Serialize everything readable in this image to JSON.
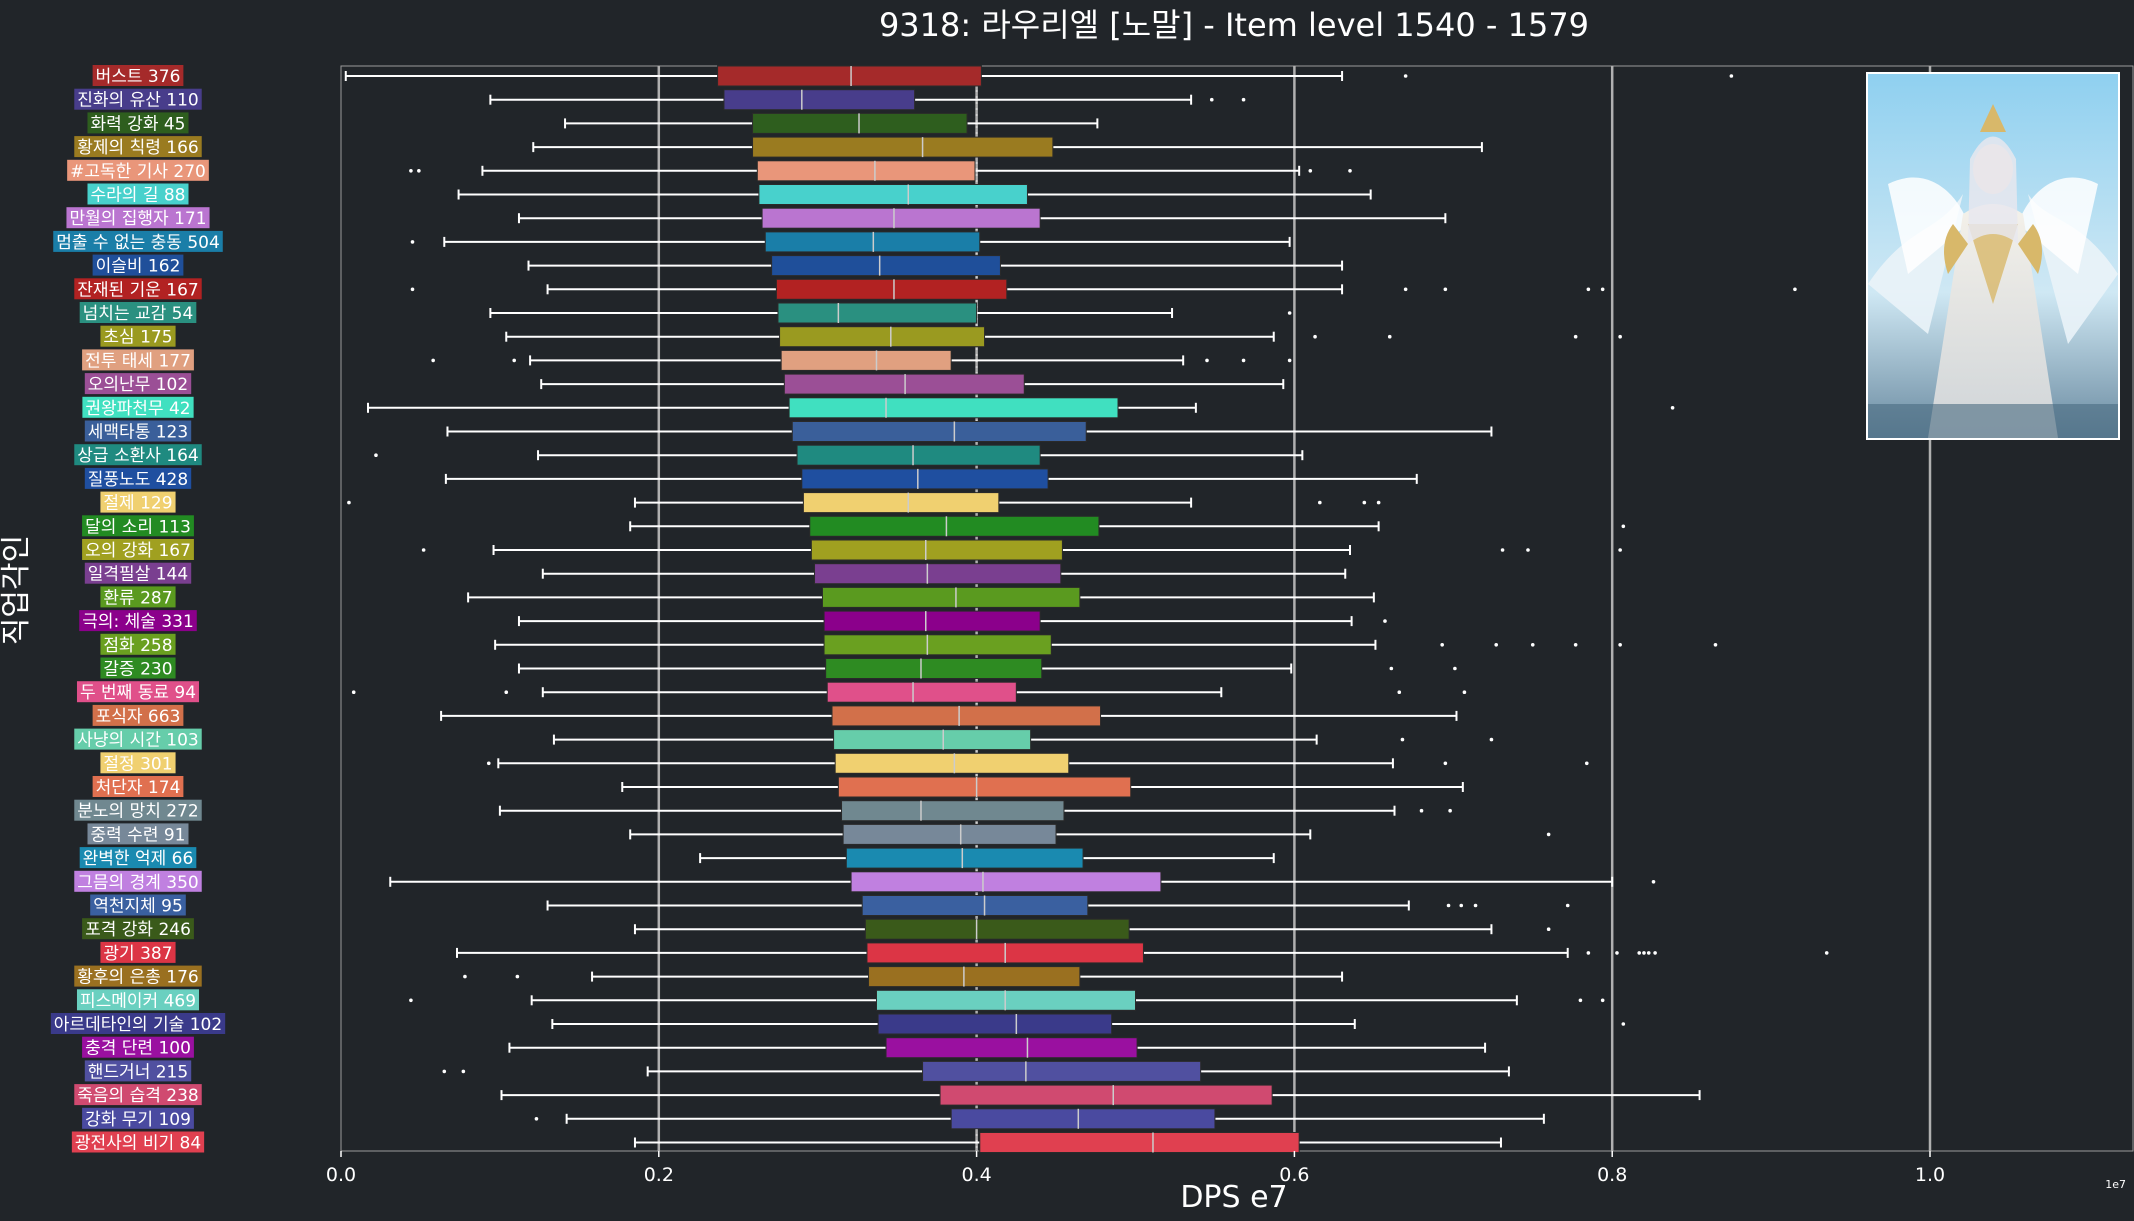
{
  "chart_data": {
    "type": "box",
    "orientation": "horizontal",
    "title": "9318: 라우리엘 [노말] - Item level 1540 - 1579",
    "xlabel": "DPS e7",
    "ylabel": "직업각인",
    "x_exponent_label": "1e7",
    "xlim": [
      0,
      1.13
    ],
    "xticks": [
      "0.0",
      "0.2",
      "0.4",
      "0.6",
      "0.8",
      "1.0"
    ],
    "x_tick_values": [
      0,
      0.2,
      0.4,
      0.6,
      0.8,
      1.0
    ],
    "major_gridlines_x": [
      0.2,
      0.4,
      0.6,
      0.8,
      1.0
    ],
    "dotted_reference_x": 0.4,
    "background_color": "#212529",
    "grid_color": "#9a9a9a",
    "series": [
      {
        "name": "버스트 376",
        "color": "#a52a2a",
        "whisker_low": 0.003,
        "q1": 0.237,
        "median": 0.321,
        "q3": 0.403,
        "whisker_high": 0.63,
        "outliers": [
          0.67,
          0.875
        ]
      },
      {
        "name": "진화의 유산 110",
        "color": "#483d8b",
        "whisker_low": 0.094,
        "q1": 0.241,
        "median": 0.29,
        "q3": 0.361,
        "whisker_high": 0.535,
        "outliers": [
          0.548,
          0.568
        ]
      },
      {
        "name": "화력 강화 45",
        "color": "#2e5e1e",
        "whisker_low": 0.141,
        "q1": 0.259,
        "median": 0.326,
        "q3": 0.394,
        "whisker_high": 0.476,
        "outliers": []
      },
      {
        "name": "황제의 칙령 166",
        "color": "#9a7b20",
        "whisker_low": 0.121,
        "q1": 0.259,
        "median": 0.366,
        "q3": 0.448,
        "whisker_high": 0.718,
        "outliers": []
      },
      {
        "name": "#고독한 기사 270",
        "color": "#e9967a",
        "whisker_low": 0.089,
        "q1": 0.262,
        "median": 0.336,
        "q3": 0.399,
        "whisker_high": 0.603,
        "outliers": [
          0.044,
          0.049,
          0.61,
          0.635
        ]
      },
      {
        "name": "수라의 길 88",
        "color": "#48d1cc",
        "whisker_low": 0.074,
        "q1": 0.263,
        "median": 0.357,
        "q3": 0.432,
        "whisker_high": 0.648,
        "outliers": []
      },
      {
        "name": "만월의 집행자 171",
        "color": "#ba75d0",
        "whisker_low": 0.112,
        "q1": 0.265,
        "median": 0.348,
        "q3": 0.44,
        "whisker_high": 0.695,
        "outliers": []
      },
      {
        "name": "멈출 수 없는 충동 504",
        "color": "#1a7ea8",
        "whisker_low": 0.065,
        "q1": 0.267,
        "median": 0.335,
        "q3": 0.402,
        "whisker_high": 0.597,
        "outliers": [
          0.045
        ]
      },
      {
        "name": "이슬비 162",
        "color": "#1f4f9a",
        "whisker_low": 0.118,
        "q1": 0.271,
        "median": 0.339,
        "q3": 0.415,
        "whisker_high": 0.63,
        "outliers": []
      },
      {
        "name": "잔재된 기운 167",
        "color": "#b22222",
        "whisker_low": 0.13,
        "q1": 0.274,
        "median": 0.348,
        "q3": 0.419,
        "whisker_high": 0.63,
        "outliers": [
          0.045,
          0.67,
          0.695,
          0.785,
          0.794,
          0.915
        ]
      },
      {
        "name": "넘치는 교감 54",
        "color": "#2a9080",
        "whisker_low": 0.094,
        "q1": 0.275,
        "median": 0.313,
        "q3": 0.4,
        "whisker_high": 0.523,
        "outliers": [
          0.597
        ]
      },
      {
        "name": "초심 175",
        "color": "#9a9a20",
        "whisker_low": 0.104,
        "q1": 0.276,
        "median": 0.346,
        "q3": 0.405,
        "whisker_high": 0.587,
        "outliers": [
          0.613,
          0.66,
          0.777,
          0.805
        ]
      },
      {
        "name": "전투 태세 177",
        "color": "#e0a080",
        "whisker_low": 0.119,
        "q1": 0.277,
        "median": 0.337,
        "q3": 0.384,
        "whisker_high": 0.53,
        "outliers": [
          0.058,
          0.109,
          0.545,
          0.568,
          0.597
        ]
      },
      {
        "name": "오의난무 102",
        "color": "#9b4f96",
        "whisker_low": 0.126,
        "q1": 0.279,
        "median": 0.355,
        "q3": 0.43,
        "whisker_high": 0.593,
        "outliers": []
      },
      {
        "name": "권왕파천무 42",
        "color": "#40e0c0",
        "whisker_low": 0.017,
        "q1": 0.282,
        "median": 0.343,
        "q3": 0.489,
        "whisker_high": 0.538,
        "outliers": [
          0.838
        ]
      },
      {
        "name": "세맥타통 123",
        "color": "#3a5f9a",
        "whisker_low": 0.067,
        "q1": 0.284,
        "median": 0.386,
        "q3": 0.469,
        "whisker_high": 0.724,
        "outliers": []
      },
      {
        "name": "상급 소환사 164",
        "color": "#1f8a80",
        "whisker_low": 0.124,
        "q1": 0.287,
        "median": 0.36,
        "q3": 0.44,
        "whisker_high": 0.605,
        "outliers": [
          0.022
        ]
      },
      {
        "name": "질풍노도 428",
        "color": "#1f4fa0",
        "whisker_low": 0.066,
        "q1": 0.29,
        "median": 0.363,
        "q3": 0.445,
        "whisker_high": 0.677,
        "outliers": []
      },
      {
        "name": "절제 129",
        "color": "#f0d070",
        "whisker_low": 0.185,
        "q1": 0.291,
        "median": 0.357,
        "q3": 0.414,
        "whisker_high": 0.535,
        "outliers": [
          0.005,
          0.616,
          0.644,
          0.653
        ]
      },
      {
        "name": "달의 소리 113",
        "color": "#228b22",
        "whisker_low": 0.182,
        "q1": 0.295,
        "median": 0.381,
        "q3": 0.477,
        "whisker_high": 0.653,
        "outliers": [
          0.807
        ]
      },
      {
        "name": "오의 강화 167",
        "color": "#a0a020",
        "whisker_low": 0.096,
        "q1": 0.296,
        "median": 0.368,
        "q3": 0.454,
        "whisker_high": 0.635,
        "outliers": [
          0.052,
          0.731,
          0.747,
          0.805
        ]
      },
      {
        "name": "일격필살 144",
        "color": "#7a3f90",
        "whisker_low": 0.127,
        "q1": 0.298,
        "median": 0.369,
        "q3": 0.453,
        "whisker_high": 0.632,
        "outliers": []
      },
      {
        "name": "환류 287",
        "color": "#5a9a1f",
        "whisker_low": 0.08,
        "q1": 0.303,
        "median": 0.387,
        "q3": 0.465,
        "whisker_high": 0.65,
        "outliers": []
      },
      {
        "name": "극의: 체술 331",
        "color": "#8b008b",
        "whisker_low": 0.112,
        "q1": 0.304,
        "median": 0.368,
        "q3": 0.44,
        "whisker_high": 0.636,
        "outliers": [
          0.657
        ]
      },
      {
        "name": "점화 258",
        "color": "#6aa020",
        "whisker_low": 0.097,
        "q1": 0.304,
        "median": 0.369,
        "q3": 0.447,
        "whisker_high": 0.651,
        "outliers": [
          0.693,
          0.727,
          0.75,
          0.777,
          0.805,
          0.865
        ]
      },
      {
        "name": "갈증 230",
        "color": "#2e8b22",
        "whisker_low": 0.112,
        "q1": 0.305,
        "median": 0.365,
        "q3": 0.441,
        "whisker_high": 0.598,
        "outliers": [
          0.661,
          0.701
        ]
      },
      {
        "name": "두 번째 동료 94",
        "color": "#e0508a",
        "whisker_low": 0.127,
        "q1": 0.306,
        "median": 0.36,
        "q3": 0.425,
        "whisker_high": 0.554,
        "outliers": [
          0.008,
          0.104,
          0.666,
          0.707
        ]
      },
      {
        "name": "포식자 663",
        "color": "#d2704a",
        "whisker_low": 0.063,
        "q1": 0.309,
        "median": 0.389,
        "q3": 0.478,
        "whisker_high": 0.702,
        "outliers": []
      },
      {
        "name": "사냥의 시간 103",
        "color": "#66cdaa",
        "whisker_low": 0.134,
        "q1": 0.31,
        "median": 0.379,
        "q3": 0.434,
        "whisker_high": 0.614,
        "outliers": [
          0.668,
          0.724
        ]
      },
      {
        "name": "절정 301",
        "color": "#f0d070",
        "whisker_low": 0.099,
        "q1": 0.311,
        "median": 0.386,
        "q3": 0.458,
        "whisker_high": 0.662,
        "outliers": [
          0.093,
          0.695,
          0.784
        ]
      },
      {
        "name": "처단자 174",
        "color": "#e07050",
        "whisker_low": 0.177,
        "q1": 0.313,
        "median": 0.4,
        "q3": 0.497,
        "whisker_high": 0.706,
        "outliers": []
      },
      {
        "name": "분노의 망치 272",
        "color": "#708890",
        "whisker_low": 0.1,
        "q1": 0.315,
        "median": 0.365,
        "q3": 0.455,
        "whisker_high": 0.663,
        "outliers": [
          0.68,
          0.698
        ]
      },
      {
        "name": "중력 수련 91",
        "color": "#778899",
        "whisker_low": 0.182,
        "q1": 0.316,
        "median": 0.39,
        "q3": 0.45,
        "whisker_high": 0.61,
        "outliers": [
          0.76
        ]
      },
      {
        "name": "완벽한 억제 66",
        "color": "#1a8ab0",
        "whisker_low": 0.226,
        "q1": 0.318,
        "median": 0.391,
        "q3": 0.467,
        "whisker_high": 0.587,
        "outliers": []
      },
      {
        "name": "그믐의 경계 350",
        "color": "#c080e0",
        "whisker_low": 0.031,
        "q1": 0.321,
        "median": 0.404,
        "q3": 0.516,
        "whisker_high": 0.8,
        "outliers": [
          0.826
        ]
      },
      {
        "name": "역천지체 95",
        "color": "#3a60a0",
        "whisker_low": 0.13,
        "q1": 0.328,
        "median": 0.405,
        "q3": 0.47,
        "whisker_high": 0.672,
        "outliers": [
          0.697,
          0.705,
          0.714,
          0.772
        ]
      },
      {
        "name": "포격 강화 246",
        "color": "#3a5a1a",
        "whisker_low": 0.185,
        "q1": 0.33,
        "median": 0.4,
        "q3": 0.496,
        "whisker_high": 0.724,
        "outliers": [
          0.76
        ]
      },
      {
        "name": "광기 387",
        "color": "#dc3545",
        "whisker_low": 0.073,
        "q1": 0.331,
        "median": 0.418,
        "q3": 0.505,
        "whisker_high": 0.772,
        "outliers": [
          0.785,
          0.803,
          0.817,
          0.82,
          0.823,
          0.827,
          0.935
        ]
      },
      {
        "name": "황후의 은총 176",
        "color": "#9a7020",
        "whisker_low": 0.158,
        "q1": 0.332,
        "median": 0.392,
        "q3": 0.465,
        "whisker_high": 0.63,
        "outliers": [
          0.078,
          0.111
        ]
      },
      {
        "name": "피스메이커 469",
        "color": "#6ad0c0",
        "whisker_low": 0.12,
        "q1": 0.337,
        "median": 0.418,
        "q3": 0.5,
        "whisker_high": 0.74,
        "outliers": [
          0.044,
          0.78,
          0.794
        ]
      },
      {
        "name": "아르데타인의 기술 102",
        "color": "#3a3a8a",
        "whisker_low": 0.133,
        "q1": 0.338,
        "median": 0.425,
        "q3": 0.485,
        "whisker_high": 0.638,
        "outliers": [
          0.807
        ]
      },
      {
        "name": "충격 단련 100",
        "color": "#9a10a0",
        "whisker_low": 0.106,
        "q1": 0.343,
        "median": 0.432,
        "q3": 0.501,
        "whisker_high": 0.72,
        "outliers": []
      },
      {
        "name": "핸드거너 215",
        "color": "#5050a0",
        "whisker_low": 0.193,
        "q1": 0.366,
        "median": 0.431,
        "q3": 0.541,
        "whisker_high": 0.735,
        "outliers": [
          0.065,
          0.077
        ]
      },
      {
        "name": "죽음의 습격 238",
        "color": "#d04a70",
        "whisker_low": 0.101,
        "q1": 0.377,
        "median": 0.486,
        "q3": 0.586,
        "whisker_high": 0.855,
        "outliers": []
      },
      {
        "name": "강화 무기 109",
        "color": "#4a4aa0",
        "whisker_low": 0.142,
        "q1": 0.384,
        "median": 0.464,
        "q3": 0.55,
        "whisker_high": 0.757,
        "outliers": [
          0.123
        ]
      },
      {
        "name": "광전사의 비기 84",
        "color": "#e04050",
        "whisker_low": 0.185,
        "q1": 0.402,
        "median": 0.511,
        "q3": 0.603,
        "whisker_high": 0.73,
        "outliers": []
      }
    ]
  }
}
